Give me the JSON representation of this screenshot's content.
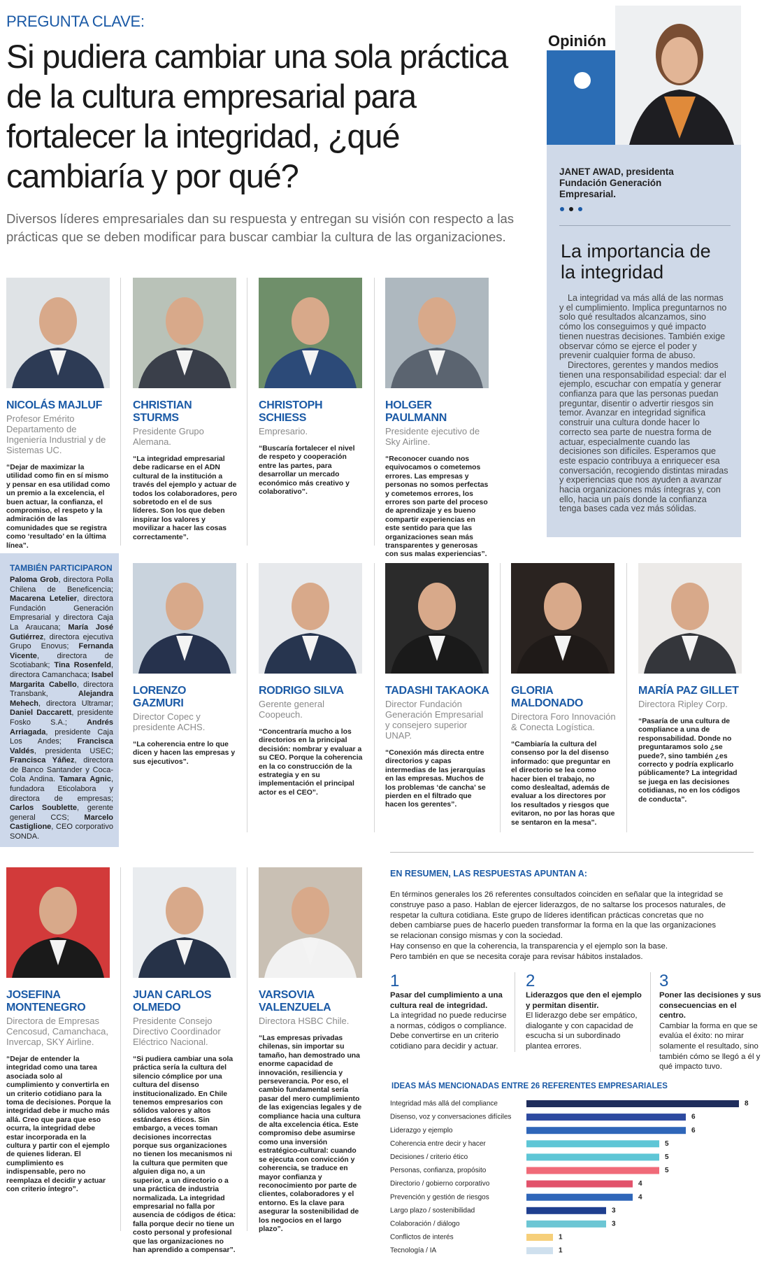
{
  "header": {
    "kicker": "PREGUNTA CLAVE:",
    "title": "Si pudiera cambiar una sola práctica de la cultura empresarial para fortalecer la integridad, ¿qué cambiaría y por qué?",
    "intro": "Diversos líderes empresariales dan su respuesta y entregan su visión con respecto a las prácticas que se deben modificar para buscar cambiar la cultura de las organizaciones."
  },
  "opinion": {
    "label": "Opinión",
    "author": "JANET AWAD, presidenta Fundación Generación Empresarial.",
    "title": "La importancia de la integridad",
    "paragraphs": [
      "La integridad va más allá de las normas y el cumplimiento. Implica preguntarnos no solo qué resultados alcanzamos, sino cómo los conseguimos y qué impacto tienen nuestras decisiones. También exige observar cómo se ejerce el poder y prevenir cualquier forma de abuso.",
      "Directores, gerentes y mandos medios tienen una responsabilidad especial: dar el ejemplo, escuchar con empatía y generar confianza para que las personas puedan preguntar, disentir o advertir riesgos sin temor. Avanzar en integridad significa construir una cultura donde hacer lo correcto sea parte de nuestra forma de actuar, especialmente cuando las decisiones son difíciles. Esperamos que este espacio contribuya a enriquecer esa conversación, recogiendo distintas miradas y experiencias que nos ayuden a avanzar hacia organizaciones más íntegras y, con ello, hacia un país donde la confianza tenga bases cada vez más sólidas."
    ]
  },
  "leaders": [
    {
      "name": "NICOLÁS MAJLUF",
      "role": "Profesor Emérito Departamento de Ingeniería Industrial y de Sistemas UC.",
      "quote": "“Dejar de maximizar la utilidad como fin en sí mismo y pensar en esa utilidad como un premio a la excelencia, el buen actuar, la confianza, el compromiso, el respeto y la admiración de las comunidades que se registra como ‘resultado’ en la última línea”."
    },
    {
      "name": "CHRISTIAN STURMS",
      "role": "Presidente Grupo Alemana.",
      "quote": "“La integridad empresarial debe radicarse en el ADN cultural de la institución a través del ejemplo y actuar de todos los colaboradores, pero sobretodo en el de sus líderes. Son los que deben inspirar los valores y movilizar a hacer las cosas correctamente”."
    },
    {
      "name": "CHRISTOPH SCHIESS",
      "role": "Empresario.",
      "quote": "“Buscaría fortalecer el nivel de respeto y cooperación entre las partes, para desarrollar un mercado económico más creativo y colaborativo”."
    },
    {
      "name": "HOLGER PAULMANN",
      "role": "Presidente ejecutivo de Sky Airline.",
      "quote": "“Reconocer cuando nos equivocamos o cometemos errores. Las empresas y personas no somos perfectas y cometemos errores, los errores son parte del proceso de aprendizaje y es bueno compartir experiencias en este sentido para que las organizaciones sean más transparentes y generosas con sus malas experiencias”."
    },
    {
      "name": "LORENZO GAZMURI",
      "role": "Director Copec y presidente ACHS.",
      "quote": "“La coherencia entre lo que dicen y hacen las empresas y sus ejecutivos”."
    },
    {
      "name": "RODRIGO SILVA",
      "role": "Gerente general Coopeuch.",
      "quote": "“Concentraría mucho a los directorios en la principal decisión: nombrar y evaluar a su CEO. Porque la coherencia en la co construcción de la estrategia y en su implementación el principal actor es el CEO”."
    },
    {
      "name": "TADASHI TAKAOKA",
      "role": "Director Fundación Generación Empresarial y consejero superior UNAP.",
      "quote": "“Conexión más directa entre directorios y capas intermedias de las jerarquías en las empresas. Muchos de los problemas ‘de cancha’ se pierden en el filtrado que hacen los gerentes”."
    },
    {
      "name": "GLORIA MALDONADO",
      "role": "Directora Foro Innovación & Conecta Logística.",
      "quote": "“Cambiaría la cultura del consenso por la del disenso informado: que preguntar en el directorio se lea como hacer bien el trabajo, no como deslealtad, además de evaluar a los directores por los resultados y riesgos que evitaron, no por las horas que se sentaron en la mesa”."
    },
    {
      "name": "MARÍA PAZ GILLET",
      "role": "Directora Ripley Corp.",
      "quote": "“Pasaría de una cultura de compliance a una de responsabilidad. Donde no preguntaramos solo ¿se puede?, sino también ¿es correcto y podría explicarlo públicamente? La integridad se juega en las decisiones cotidianas, no en los códigos de conducta”."
    },
    {
      "name": "JOSEFINA MONTENEGRO",
      "role": "Directora de Empresas Cencosud, Camanchaca, Invercap, SKY Airline.",
      "quote": "“Dejar de entender la integridad como una tarea asociada solo al cumplimiento y convertirla en un criterio cotidiano para la toma de decisiones. Porque la integridad debe ir mucho más allá. Creo que para que eso ocurra, la integridad debe estar incorporada en la cultura y partir con el ejemplo de quienes lideran. El cumplimiento es indispensable, pero no reemplaza el decidir y actuar con criterio íntegro”."
    },
    {
      "name": "JUAN CARLOS OLMEDO",
      "role": "Presidente Consejo Directivo Coordinador Eléctrico Nacional.",
      "quote": "“Si pudiera cambiar una sola práctica sería la cultura del silencio cómplice por una cultura del disenso institucionalizado. En Chile tenemos empresarios con sólidos valores y altos estándares éticos. Sin embargo, a veces toman decisiones incorrectas porque sus organizaciones no tienen los mecanismos ni la cultura que permiten que alguien diga no, a un superior, a un directorio o a una práctica de industria normalizada. La integridad empresarial no falla por ausencia de códigos de ética: falla porque decir no tiene un costo personal y profesional que las organizaciones no han aprendido a compensar”."
    },
    {
      "name": "VARSOVIA VALENZUELA",
      "role": "Directora HSBC Chile.",
      "quote": "“Las empresas privadas chilenas, sin importar su tamaño, han demostrado una enorme capacidad de innovación, resiliencia y perseverancia. Por eso, el cambio fundamental sería pasar del mero cumplimiento de las exigencias legales y de compliance hacia una cultura de alta excelencia ética. Este compromiso debe asumirse como una inversión estratégico-cultural: cuando se ejecuta con convicción y coherencia, se traduce en mayor confianza y reconocimiento por parte de clientes, colaboradores y el entorno. Es la clave para asegurar la sostenibilidad de los negocios en el largo plazo”."
    }
  ],
  "also": {
    "title": "TAMBIÉN PARTICIPARON",
    "entries": [
      {
        "name": "Paloma Grob",
        "role": ", directora Polla Chilena de Beneficencia;"
      },
      {
        "name": "Macarena Letelier",
        "role": ", directora Fundación Generación Empresarial y directora Caja La Araucana;"
      },
      {
        "name": "María José Gutiérrez",
        "role": ", directora ejecutiva Grupo Enovus;"
      },
      {
        "name": "Fernanda Vicente",
        "role": ", directora de Scotiabank;"
      },
      {
        "name": "Tina Rosenfeld",
        "role": ", directora Camanchaca;"
      },
      {
        "name": "Isabel Margarita Cabello",
        "role": ", directora Transbank,"
      },
      {
        "name": "Alejandra Mehech",
        "role": ", directora Ultramar;"
      },
      {
        "name": "Daniel Daccarett",
        "role": ", presidente Fosko S.A.;"
      },
      {
        "name": "Andrés Arriagada",
        "role": ", presidente Caja Los Andes;"
      },
      {
        "name": "Francisca Valdés",
        "role": ", presidenta USEC;"
      },
      {
        "name": "Francisca Yáñez",
        "role": ", directora de Banco Santander y Coca-Cola Andina."
      },
      {
        "name": "Tamara Agnic",
        "role": ", fundadora Eticolabora y directora de empresas;"
      },
      {
        "name": "Carlos Soublette",
        "role": ", gerente general CCS;"
      },
      {
        "name": "Marcelo Castiglione",
        "role": ", CEO corporativo SONDA."
      }
    ]
  },
  "summary": {
    "heading": "EN RESUMEN, LAS RESPUESTAS APUNTAN A:",
    "paragraphs": [
      "En términos generales los 26 referentes consultados coinciden en señalar que la integridad se construye paso a paso. Hablan de ejercer liderazgos, de no saltarse los procesos naturales, de respetar la cultura cotidiana. Este grupo de líderes identifican prácticas concretas que no deben cambiarse pues de hacerlo pueden transformar la forma en la que las organizaciones se relacionan consigo mismas y con la sociedad.",
      "Hay consenso en que la coherencia, la transparencia y el ejemplo son la base.",
      "Pero también en que se necesita coraje para revisar hábitos instalados."
    ],
    "points": [
      {
        "number": 1,
        "heading": "Pasar del cumplimiento a una cultura real de integridad.",
        "text": "La integridad no puede reducirse a normas, códigos o compliance. Debe convertirse en un criterio cotidiano para decidir y actuar."
      },
      {
        "number": 2,
        "heading": "Liderazgos que den el ejemplo y permitan disentir.",
        "text": "El liderazgo debe ser empático, dialogante y con capacidad de escucha si un subordinado plantea errores."
      },
      {
        "number": 3,
        "heading": "Poner las decisiones y sus consecuencias en el centro.",
        "text": "Cambiar la forma en que se evalúa el éxito: no mirar solamente el resultado, sino también cómo se llegó a él y qué impacto tuvo."
      }
    ]
  },
  "chart_data": {
    "type": "bar",
    "orientation": "horizontal",
    "title": "IDEAS MÁS MENCIONADAS ENTRE 26 REFERENTES EMPRESARIALES",
    "categories": [
      "Integridad más allá del compliance",
      "Disenso, voz y conversaciones difíciles",
      "Liderazgo y ejemplo",
      "Coherencia entre decir y hacer",
      "Decisiones / criterio ético",
      "Personas, confianza, propósito",
      "Directorio / gobierno corporativo",
      "Prevención y gestión de riesgos",
      "Largo plazo / sostenibilidad",
      "Colaboración / diálogo",
      "Conflictos de interés",
      "Tecnología / IA"
    ],
    "values": [
      8,
      6,
      6,
      5,
      5,
      5,
      4,
      4,
      3,
      3,
      1,
      1
    ],
    "colors": [
      "#1f2d5c",
      "#2d4aa0",
      "#2f66b9",
      "#5ec6d6",
      "#5ec6d6",
      "#f06a78",
      "#e2526b",
      "#2f66b9",
      "#1f3f8f",
      "#6cc6d4",
      "#f6cf7a",
      "#cfe0ee"
    ],
    "xlim": [
      0,
      8
    ]
  }
}
